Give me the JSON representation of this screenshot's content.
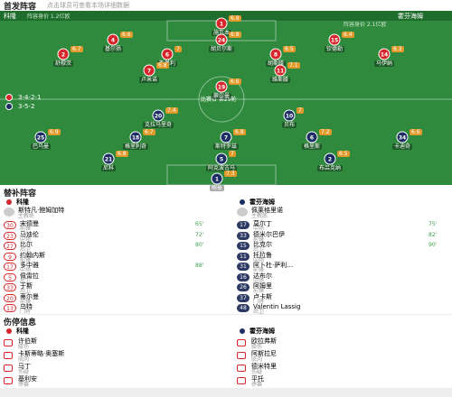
{
  "header": {
    "title": "首发阵容",
    "subtitle": "点击球员可查看本场详细数据"
  },
  "pitch": {
    "home": {
      "name": "科隆",
      "formation": "3-4-2-1",
      "value": "阵容身价 1.2亿欧"
    },
    "away": {
      "name": "霍芬海姆",
      "formation": "3-5-2",
      "value": "阵容身价 2.1亿欧"
    },
    "center": "比赛日 第29轮",
    "home_players": [
      {
        "number": 1,
        "name": "施瓦本",
        "rating": 6.9
      },
      {
        "number": 4,
        "name": "基尔扬",
        "rating": 6.6
      },
      {
        "number": 24,
        "name": "胡贝尔斯",
        "rating": 6.8
      },
      {
        "number": 15,
        "name": "钦德勒",
        "rating": 6.4
      },
      {
        "number": 2,
        "name": "舒穆茨",
        "rating": 6.7
      },
      {
        "number": 6,
        "name": "斯基利",
        "rating": 7.0
      },
      {
        "number": 8,
        "name": "胡斯滕",
        "rating": 6.5
      },
      {
        "number": 14,
        "name": "马伊纳",
        "rating": 6.3
      },
      {
        "number": 7,
        "name": "卢米诺",
        "rating": 6.8
      },
      {
        "number": 11,
        "name": "维斯滕",
        "rating": 7.1
      },
      {
        "number": 19,
        "name": "蒂尔曼",
        "rating": 6.6
      }
    ],
    "away_players": [
      {
        "number": 20,
        "name": "克拉马里奇",
        "rating": 7.4
      },
      {
        "number": 10,
        "name": "贝布",
        "rating": 7.0
      },
      {
        "number": 25,
        "name": "巴乌曼",
        "rating": 6.9
      },
      {
        "number": 18,
        "name": "格里利奇",
        "rating": 6.7
      },
      {
        "number": 7,
        "name": "斯特罗兹",
        "rating": 6.8
      },
      {
        "number": 6,
        "name": "格里斯",
        "rating": 7.2
      },
      {
        "number": 34,
        "name": "卡迪奇",
        "rating": 6.6
      },
      {
        "number": 21,
        "name": "尼科",
        "rating": 6.8
      },
      {
        "number": 5,
        "name": "阿克波古马",
        "rating": 7.0
      },
      {
        "number": 2,
        "name": "布吕克纳",
        "rating": 6.5
      },
      {
        "number": 1,
        "name": "鲍曼",
        "rating": 7.3
      }
    ]
  },
  "substitutes": {
    "title": "替补阵容",
    "home": {
      "name": "科隆",
      "coach": "斯特凡·鲍姆加特",
      "coach_role": "主教练",
      "players": [
        {
          "number": 30,
          "name": "宋德曼",
          "position": "前锋",
          "minute": "65'"
        },
        {
          "number": 23,
          "name": "马迪伦",
          "position": "中场",
          "minute": "72'"
        },
        {
          "number": 27,
          "name": "比尔",
          "position": "后卫",
          "minute": "80'"
        },
        {
          "number": 9,
          "name": "约翰内斯",
          "position": "前锋"
        },
        {
          "number": 17,
          "name": "多中雅",
          "position": "中场",
          "minute": "88'"
        },
        {
          "number": 5,
          "name": "佩雷拉",
          "position": "后卫"
        },
        {
          "number": 33,
          "name": "于斯",
          "position": "后卫"
        },
        {
          "number": 20,
          "name": "蒂尔曼",
          "position": "前锋"
        },
        {
          "number": 13,
          "name": "乌特",
          "position": "门将"
        }
      ]
    },
    "away": {
      "name": "霍芬海姆",
      "coach": "佩莱格里诺",
      "coach_role": "主教练",
      "players": [
        {
          "number": 17,
          "name": "莫尔丁",
          "position": "中场",
          "minute": "75'"
        },
        {
          "number": 33,
          "name": "德米尔巴伊",
          "position": "前锋",
          "minute": "82'"
        },
        {
          "number": 15,
          "name": "比克尔",
          "position": "后卫",
          "minute": "90'"
        },
        {
          "number": 11,
          "name": "托拉鲁",
          "position": "中场"
        },
        {
          "number": 31,
          "name": "阿卜杜·萨利…",
          "position": "前锋"
        },
        {
          "number": 16,
          "name": "达布尔",
          "position": "中场"
        },
        {
          "number": 26,
          "name": "阿姆里",
          "position": "前锋"
        },
        {
          "number": 37,
          "name": "卢卡斯",
          "position": "门将"
        },
        {
          "number": 48,
          "name": "Valentin Lassig",
          "position": "后卫"
        }
      ]
    }
  },
  "injuries": {
    "title": "伤停信息",
    "home": {
      "name": "科隆",
      "players": [
        {
          "name": "许伯斯",
          "status": "膝伤"
        },
        {
          "name": "卡斯蒂略·奥塞斯",
          "status": "肌肉"
        },
        {
          "name": "马丁",
          "status": "伤疑"
        },
        {
          "name": "基利安",
          "status": "停赛"
        }
      ]
    },
    "away": {
      "name": "霍芬海姆",
      "players": [
        {
          "name": "欧拉弗斯",
          "status": "膝伤"
        },
        {
          "name": "阿斯拉尼",
          "status": "肌肉"
        },
        {
          "name": "德米特里",
          "status": "伤疑"
        },
        {
          "name": "平托",
          "status": "停赛"
        }
      ]
    }
  }
}
